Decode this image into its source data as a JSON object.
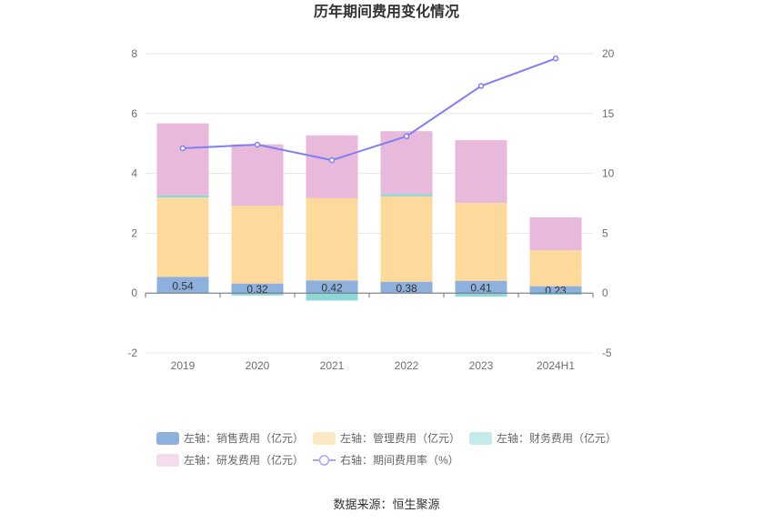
{
  "chart_data": {
    "type": "bar",
    "title": "历年期间费用变化情况",
    "categories": [
      "2019",
      "2020",
      "2021",
      "2022",
      "2023",
      "2024H1"
    ],
    "left_axis": {
      "ylim": [
        -2,
        8
      ],
      "ticks": [
        "-2",
        "0",
        "2",
        "4",
        "6",
        "8"
      ]
    },
    "right_axis": {
      "ylim": [
        -5,
        20
      ],
      "ticks": [
        "-5",
        "0",
        "5",
        "10",
        "15",
        "20"
      ]
    },
    "series": [
      {
        "name": "左轴：销售费用（亿元）",
        "type": "bar",
        "axis": "left",
        "color": "#8eb0dd",
        "values": [
          0.54,
          0.32,
          0.42,
          0.38,
          0.41,
          0.23
        ],
        "labels": [
          "0.54",
          "0.32",
          "0.42",
          "0.38",
          "0.41",
          "0.23"
        ]
      },
      {
        "name": "左轴：管理费用（亿元）",
        "type": "bar",
        "axis": "left",
        "color": "#fdd99c",
        "values": [
          2.65,
          2.6,
          2.75,
          2.85,
          2.6,
          1.2
        ]
      },
      {
        "name": "左轴：财务费用（亿元）",
        "type": "bar",
        "axis": "left",
        "color": "#8dd7d6",
        "values": [
          0.08,
          -0.08,
          -0.25,
          0.08,
          -0.12,
          -0.06
        ]
      },
      {
        "name": "左轴：研发费用（亿元）",
        "type": "bar",
        "axis": "left",
        "color": "#e8b9da",
        "values": [
          2.4,
          2.05,
          2.1,
          2.1,
          2.1,
          1.1
        ]
      },
      {
        "name": "右轴：期间费用率（%）",
        "type": "line",
        "axis": "right",
        "color": "#7f7ff5",
        "values": [
          12.1,
          12.4,
          11.1,
          13.1,
          17.3,
          19.6
        ]
      }
    ]
  },
  "source": "数据来源：恒生聚源"
}
